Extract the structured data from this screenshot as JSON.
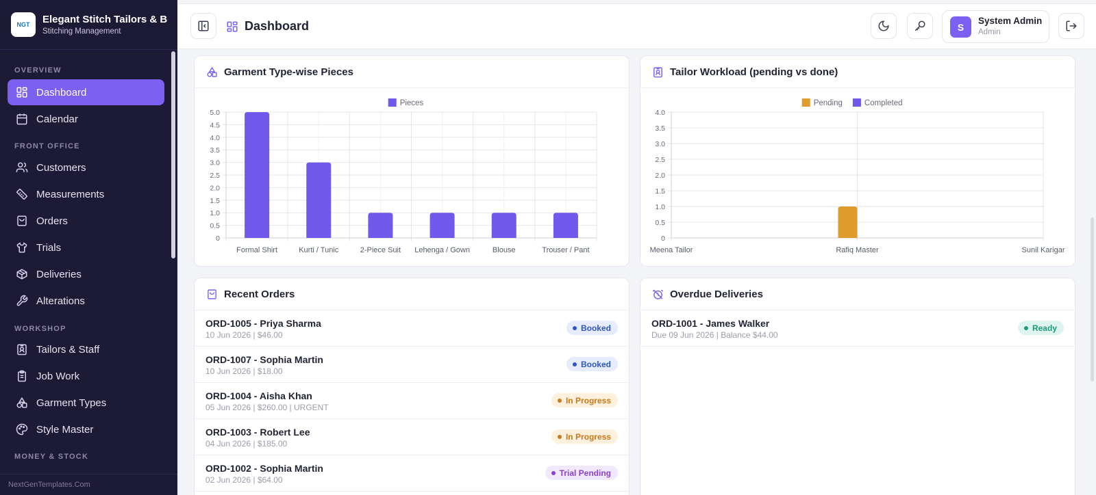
{
  "app": {
    "brand_name": "Elegant Stitch Tailors & Boutique",
    "brand_sub": "Stitching Management",
    "logo_text": "NGT",
    "footer": "NextGenTemplates.Com"
  },
  "sidebar": {
    "sections": {
      "overview": "OVERVIEW",
      "front_office": "FRONT OFFICE",
      "workshop": "WORKSHOP",
      "money": "MONEY & STOCK"
    },
    "items": {
      "dashboard": "Dashboard",
      "calendar": "Calendar",
      "customers": "Customers",
      "measurements": "Measurements",
      "orders": "Orders",
      "trials": "Trials",
      "deliveries": "Deliveries",
      "alterations": "Alterations",
      "tailors": "Tailors & Staff",
      "job_work": "Job Work",
      "garment_types": "Garment Types",
      "style_master": "Style Master"
    }
  },
  "header": {
    "title": "Dashboard",
    "user_name": "System Admin",
    "user_role": "Admin",
    "avatar_letter": "S"
  },
  "cards": {
    "garment_title": "Garment Type-wise Pieces",
    "workload_title": "Tailor Workload (pending vs done)",
    "recent_title": "Recent Orders",
    "overdue_title": "Overdue Deliveries"
  },
  "chart_data": [
    {
      "type": "bar",
      "title": "Garment Type-wise Pieces",
      "categories": [
        "Formal Shirt",
        "Kurti / Tunic",
        "2-Piece Suit",
        "Lehenga / Gown",
        "Blouse",
        "Trouser / Pant"
      ],
      "series": [
        {
          "name": "Pieces",
          "values": [
            5,
            3,
            1,
            1,
            1,
            1
          ],
          "color": "#7159eb"
        }
      ],
      "yticks": [
        "0",
        "0.5",
        "1.0",
        "1.5",
        "2.0",
        "2.5",
        "3.0",
        "3.5",
        "4.0",
        "4.5",
        "5.0"
      ],
      "ylim": [
        0,
        5
      ],
      "grid": true,
      "legend": "top-center"
    },
    {
      "type": "bar",
      "title": "Tailor Workload (pending vs done)",
      "categories": [
        "Meena Tailor",
        "Rafiq Master",
        "Sunil Karigar"
      ],
      "series": [
        {
          "name": "Pending",
          "values": [
            0,
            1,
            0
          ],
          "color": "#e09b2d"
        },
        {
          "name": "Completed",
          "values": [
            0,
            0,
            0
          ],
          "color": "#7159eb"
        }
      ],
      "yticks": [
        "0",
        "0.5",
        "1.0",
        "1.5",
        "2.0",
        "2.5",
        "3.0",
        "3.5",
        "4.0"
      ],
      "ylim": [
        0,
        4
      ],
      "grid": true,
      "legend": "top-center"
    }
  ],
  "recent_orders": [
    {
      "title": "ORD-1005 - Priya Sharma",
      "sub": "10 Jun 2026 | $46.00",
      "status": "Booked",
      "kind": "booked"
    },
    {
      "title": "ORD-1007 - Sophia Martin",
      "sub": "10 Jun 2026 | $18.00",
      "status": "Booked",
      "kind": "booked"
    },
    {
      "title": "ORD-1004 - Aisha Khan",
      "sub": "05 Jun 2026 | $260.00 | URGENT",
      "status": "In Progress",
      "kind": "progress"
    },
    {
      "title": "ORD-1003 - Robert Lee",
      "sub": "04 Jun 2026 | $185.00",
      "status": "In Progress",
      "kind": "progress"
    },
    {
      "title": "ORD-1002 - Sophia Martin",
      "sub": "02 Jun 2026 | $64.00",
      "status": "Trial Pending",
      "kind": "trial"
    }
  ],
  "overdue": [
    {
      "title": "ORD-1001 - James Walker",
      "sub": "Due 09 Jun 2026 | Balance $44.00",
      "status": "Ready",
      "kind": "ready"
    }
  ]
}
